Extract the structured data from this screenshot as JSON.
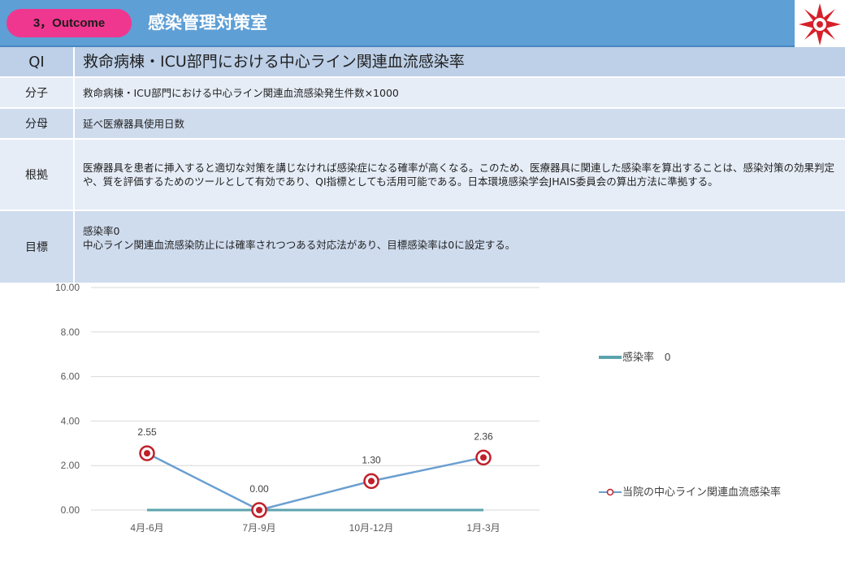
{
  "header": {
    "badge": "3，Outcome",
    "department": "感染管理対策室",
    "logo_icon": "hospital-emblem-icon"
  },
  "table": {
    "title_label": "QI",
    "title": "救命病棟・ICU部門における中心ライン関連血流感染率",
    "rows": [
      {
        "label": "分子",
        "value": "救命病棟・ICU部門における中心ライン関連血流感染発生件数×1000"
      },
      {
        "label": "分母",
        "value": "延べ医療器具使用日数"
      },
      {
        "label": "根拠",
        "value": "医療器具を患者に挿入すると適切な対策を講じなければ感染症になる確率が高くなる。このため、医療器具に関連した感染率を算出することは、感染対策の効果判定や、質を評価するためのツールとして有効であり、QI指標としても活用可能である。日本環境感染学会JHAIS委員会の算出方法に準拠する。"
      },
      {
        "label": "目標",
        "value_line1": "感染率0",
        "value_line2": "中心ライン関連血流感染防止には確率されつつある対応法があり、目標感染率は0に設定する。"
      }
    ]
  },
  "colors": {
    "header_bg": "#5e9fd6",
    "badge_bg": "#f0378f",
    "series_target": "#5ba3ae",
    "series_rate": "#6b9fd0",
    "marker_fill": "#c0202a"
  },
  "chart_data": {
    "type": "line",
    "categories": [
      "4月-6月",
      "7月-9月",
      "10月-12月",
      "1月-3月"
    ],
    "y_ticks": [
      "0.00",
      "2.00",
      "4.00",
      "6.00",
      "8.00",
      "10.00"
    ],
    "ylim": [
      0,
      10
    ],
    "grid": true,
    "legend_position": "right",
    "series": [
      {
        "name": "感染率　0",
        "values": [
          0,
          0,
          0,
          0
        ],
        "marker": false
      },
      {
        "name": "当院の中心ライン関連血流感染率",
        "values": [
          2.55,
          0.0,
          1.3,
          2.36
        ],
        "labels": [
          "2.55",
          "0.00",
          "1.30",
          "2.36"
        ],
        "marker": true
      }
    ]
  }
}
